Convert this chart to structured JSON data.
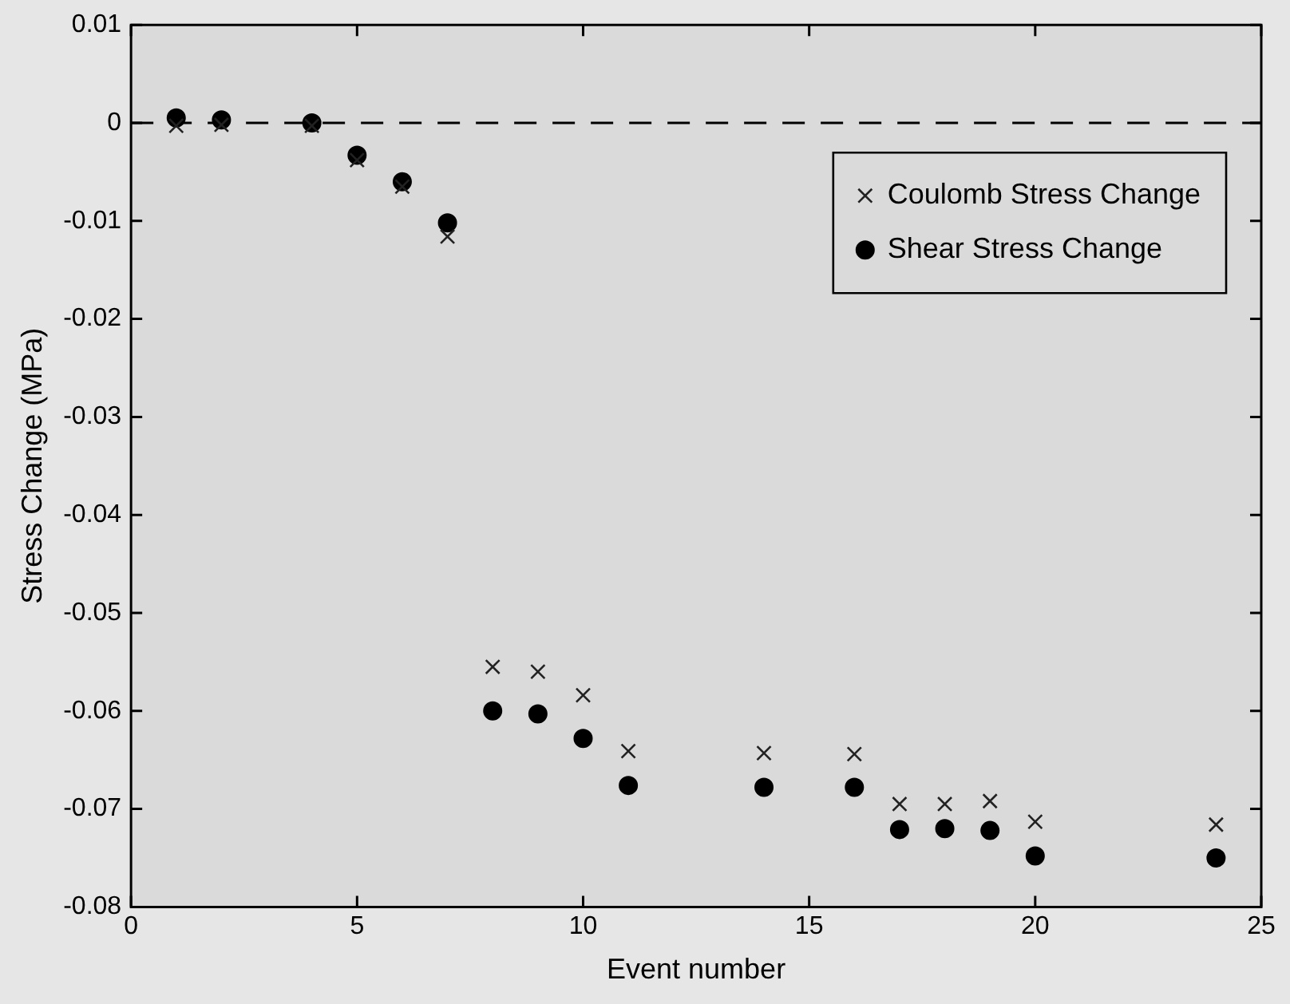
{
  "chart_data": {
    "type": "scatter",
    "xlabel": "Event number",
    "ylabel": "Stress Change (MPa)",
    "xlim": [
      0,
      25
    ],
    "xticks": [
      0,
      5,
      10,
      15,
      20,
      25
    ],
    "ylim": [
      -0.08,
      0.01
    ],
    "yticks": [
      0.01,
      0,
      -0.01,
      -0.02,
      -0.03,
      -0.04,
      -0.05,
      -0.06,
      -0.07,
      -0.08
    ],
    "grid": false,
    "legend": "top right",
    "ref_lines": [
      {
        "axis": "y",
        "value": 0,
        "line_style": "dashed",
        "color": "#000000"
      }
    ],
    "series": [
      {
        "name": "Coulomb Stress Change",
        "color": "#222222",
        "marker": "cross",
        "x": [
          1,
          2,
          4,
          5,
          6,
          7,
          8,
          9,
          10,
          11,
          14,
          16,
          17,
          18,
          19,
          20,
          24
        ],
        "values": [
          -0.0003,
          -0.0002,
          -0.0003,
          -0.0038,
          -0.0065,
          -0.0116,
          -0.0555,
          -0.056,
          -0.0584,
          -0.0641,
          -0.0643,
          -0.0644,
          -0.0695,
          -0.0695,
          -0.0692,
          -0.0713,
          -0.0716
        ]
      },
      {
        "name": "Shear Stress Change",
        "color": "#000000",
        "marker": "circle",
        "x": [
          1,
          2,
          4,
          5,
          6,
          7,
          8,
          9,
          10,
          11,
          14,
          16,
          17,
          18,
          19,
          20,
          24
        ],
        "values": [
          0.0005,
          0.0003,
          0,
          -0.0033,
          -0.006,
          -0.0102,
          -0.06,
          -0.0603,
          -0.0628,
          -0.0676,
          -0.0678,
          -0.0678,
          -0.0721,
          -0.072,
          -0.0722,
          -0.0748,
          -0.075
        ]
      }
    ]
  }
}
